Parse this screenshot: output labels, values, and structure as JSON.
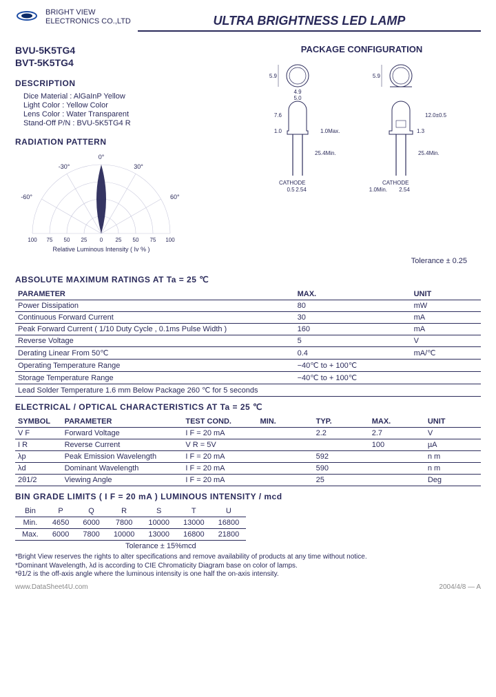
{
  "header": {
    "company_line1": "BRIGHT VIEW",
    "company_line2": "ELECTRONICS CO.,LTD",
    "title": "ULTRA BRIGHTNESS LED LAMP",
    "logo_colors": {
      "ring": "#1e4ea6",
      "inner": "#0b2a66"
    }
  },
  "part_numbers": [
    "BVU-5K5TG4",
    "BVT-5K5TG4"
  ],
  "description": {
    "heading": "DESCRIPTION",
    "lines": [
      "Dice Material : AlGaInP Yellow",
      "Light Color : Yellow Color",
      "Lens Color : Water Transparent",
      "Stand-Off  P/N : BVU-5K5TG4 R"
    ]
  },
  "radiation": {
    "heading": "RADIATION  PATTERN",
    "angles": [
      "-30°",
      "0°",
      "30°",
      "-60°",
      "60°"
    ],
    "x_ticks": [
      "100",
      "75",
      "50",
      "25",
      "0",
      "25",
      "50",
      "75",
      "100"
    ],
    "xlabel": "Relative Luminous Intensity  ( Iv % )",
    "lobe_color": "#2a2a5a",
    "grid_color": "#c8c8dc"
  },
  "package": {
    "heading": "PACKAGE CONFIGURATION",
    "dims": {
      "ring_dia": "5.9",
      "body_w": "5.0",
      "body_inner": "4.9",
      "dome_h": "7.6",
      "flange_h": "1.0",
      "flange_max": "1.0Max.",
      "overall_h": "12.0±0.5",
      "flange_step": "1.3",
      "lead_len": "25.4Min.",
      "lead_pitch": "2.54",
      "lead_w": "0.5",
      "base_min": "1.0Min.",
      "cathode": "CATHODE"
    },
    "tolerance": "Tolerance  ± 0.25"
  },
  "amr": {
    "heading": "ABSOLUTE  MAXIMUM  RATINGS  AT  Ta = 25 ℃",
    "cols": [
      "PARAMETER",
      "MAX.",
      "UNIT"
    ],
    "rows": [
      [
        "Power Dissipation",
        "80",
        "mW"
      ],
      [
        "Continuous Forward Current",
        "30",
        "mA"
      ],
      [
        "Peak  Forward  Current  ( 1/10 Duty Cycle , 0.1ms  Pulse  Width  )",
        "160",
        "mA"
      ],
      [
        "Reverse  Voltage",
        "5",
        "V"
      ],
      [
        "Derating  Linear  From  50℃",
        "0.4",
        "mA/℃"
      ],
      [
        "Operating  Temperature  Range",
        "−40℃  to  + 100℃",
        ""
      ],
      [
        "Storage  Temperature  Range",
        "−40℃  to  + 100℃",
        ""
      ],
      [
        "Lead  Solder  Temperature  1.6 mm  Below  Package  260 ℃  for  5  seconds",
        "",
        ""
      ]
    ]
  },
  "eoc": {
    "heading": "ELECTRICAL / OPTICAL  CHARACTERISTICS  AT  Ta = 25 ℃",
    "cols": [
      "SYMBOL",
      "PARAMETER",
      "TEST COND.",
      "MIN.",
      "TYP.",
      "MAX.",
      "UNIT"
    ],
    "rows": [
      [
        "V F",
        "Forward  Voltage",
        "I F = 20 mA",
        "",
        "2.2",
        "2.7",
        "V"
      ],
      [
        "I R",
        "Reverse  Current",
        "V R = 5V",
        "",
        "",
        "100",
        "µA"
      ],
      [
        "λp",
        "Peak Emission Wavelength",
        "I F = 20 mA",
        "",
        "592",
        "",
        "n m"
      ],
      [
        "λd",
        "Dominant  Wavelength",
        "I F = 20 mA",
        "",
        "590",
        "",
        "n m"
      ],
      [
        "2θ1/2",
        "Viewing Angle",
        "I F = 20 mA",
        "",
        "25",
        "",
        "Deg"
      ]
    ]
  },
  "bin": {
    "heading": "BIN  GRADE  LIMITS  ( I F = 20 mA ) LUMINOUS INTENSITY / mcd",
    "cols": [
      "Bin",
      "P",
      "Q",
      "R",
      "S",
      "T",
      "U"
    ],
    "rows": [
      [
        "Min.",
        "4650",
        "6000",
        "7800",
        "10000",
        "13000",
        "16800"
      ],
      [
        "Max.",
        "6000",
        "7800",
        "10000",
        "13000",
        "16800",
        "21800"
      ]
    ],
    "tolerance": "Tolerance  ± 15%mcd"
  },
  "footnotes": [
    "*Bright View reserves the rights to alter specifications and remove availability of products at any time without notice.",
    "*Dominant  Wavelength, λd is according to CIE Chromaticity Diagram base on color of lamps.",
    "*θ1/2 is the  off-axis angle where the luminous intensity is one  half  the on-axis  intensity."
  ],
  "footer": {
    "left": "www.DataSheet4U.com",
    "right": "2004/4/8 — A"
  },
  "colors": {
    "text": "#2a2a5a",
    "rule": "#2a2a5a",
    "grid": "#c8c8dc",
    "bg": "#ffffff"
  }
}
